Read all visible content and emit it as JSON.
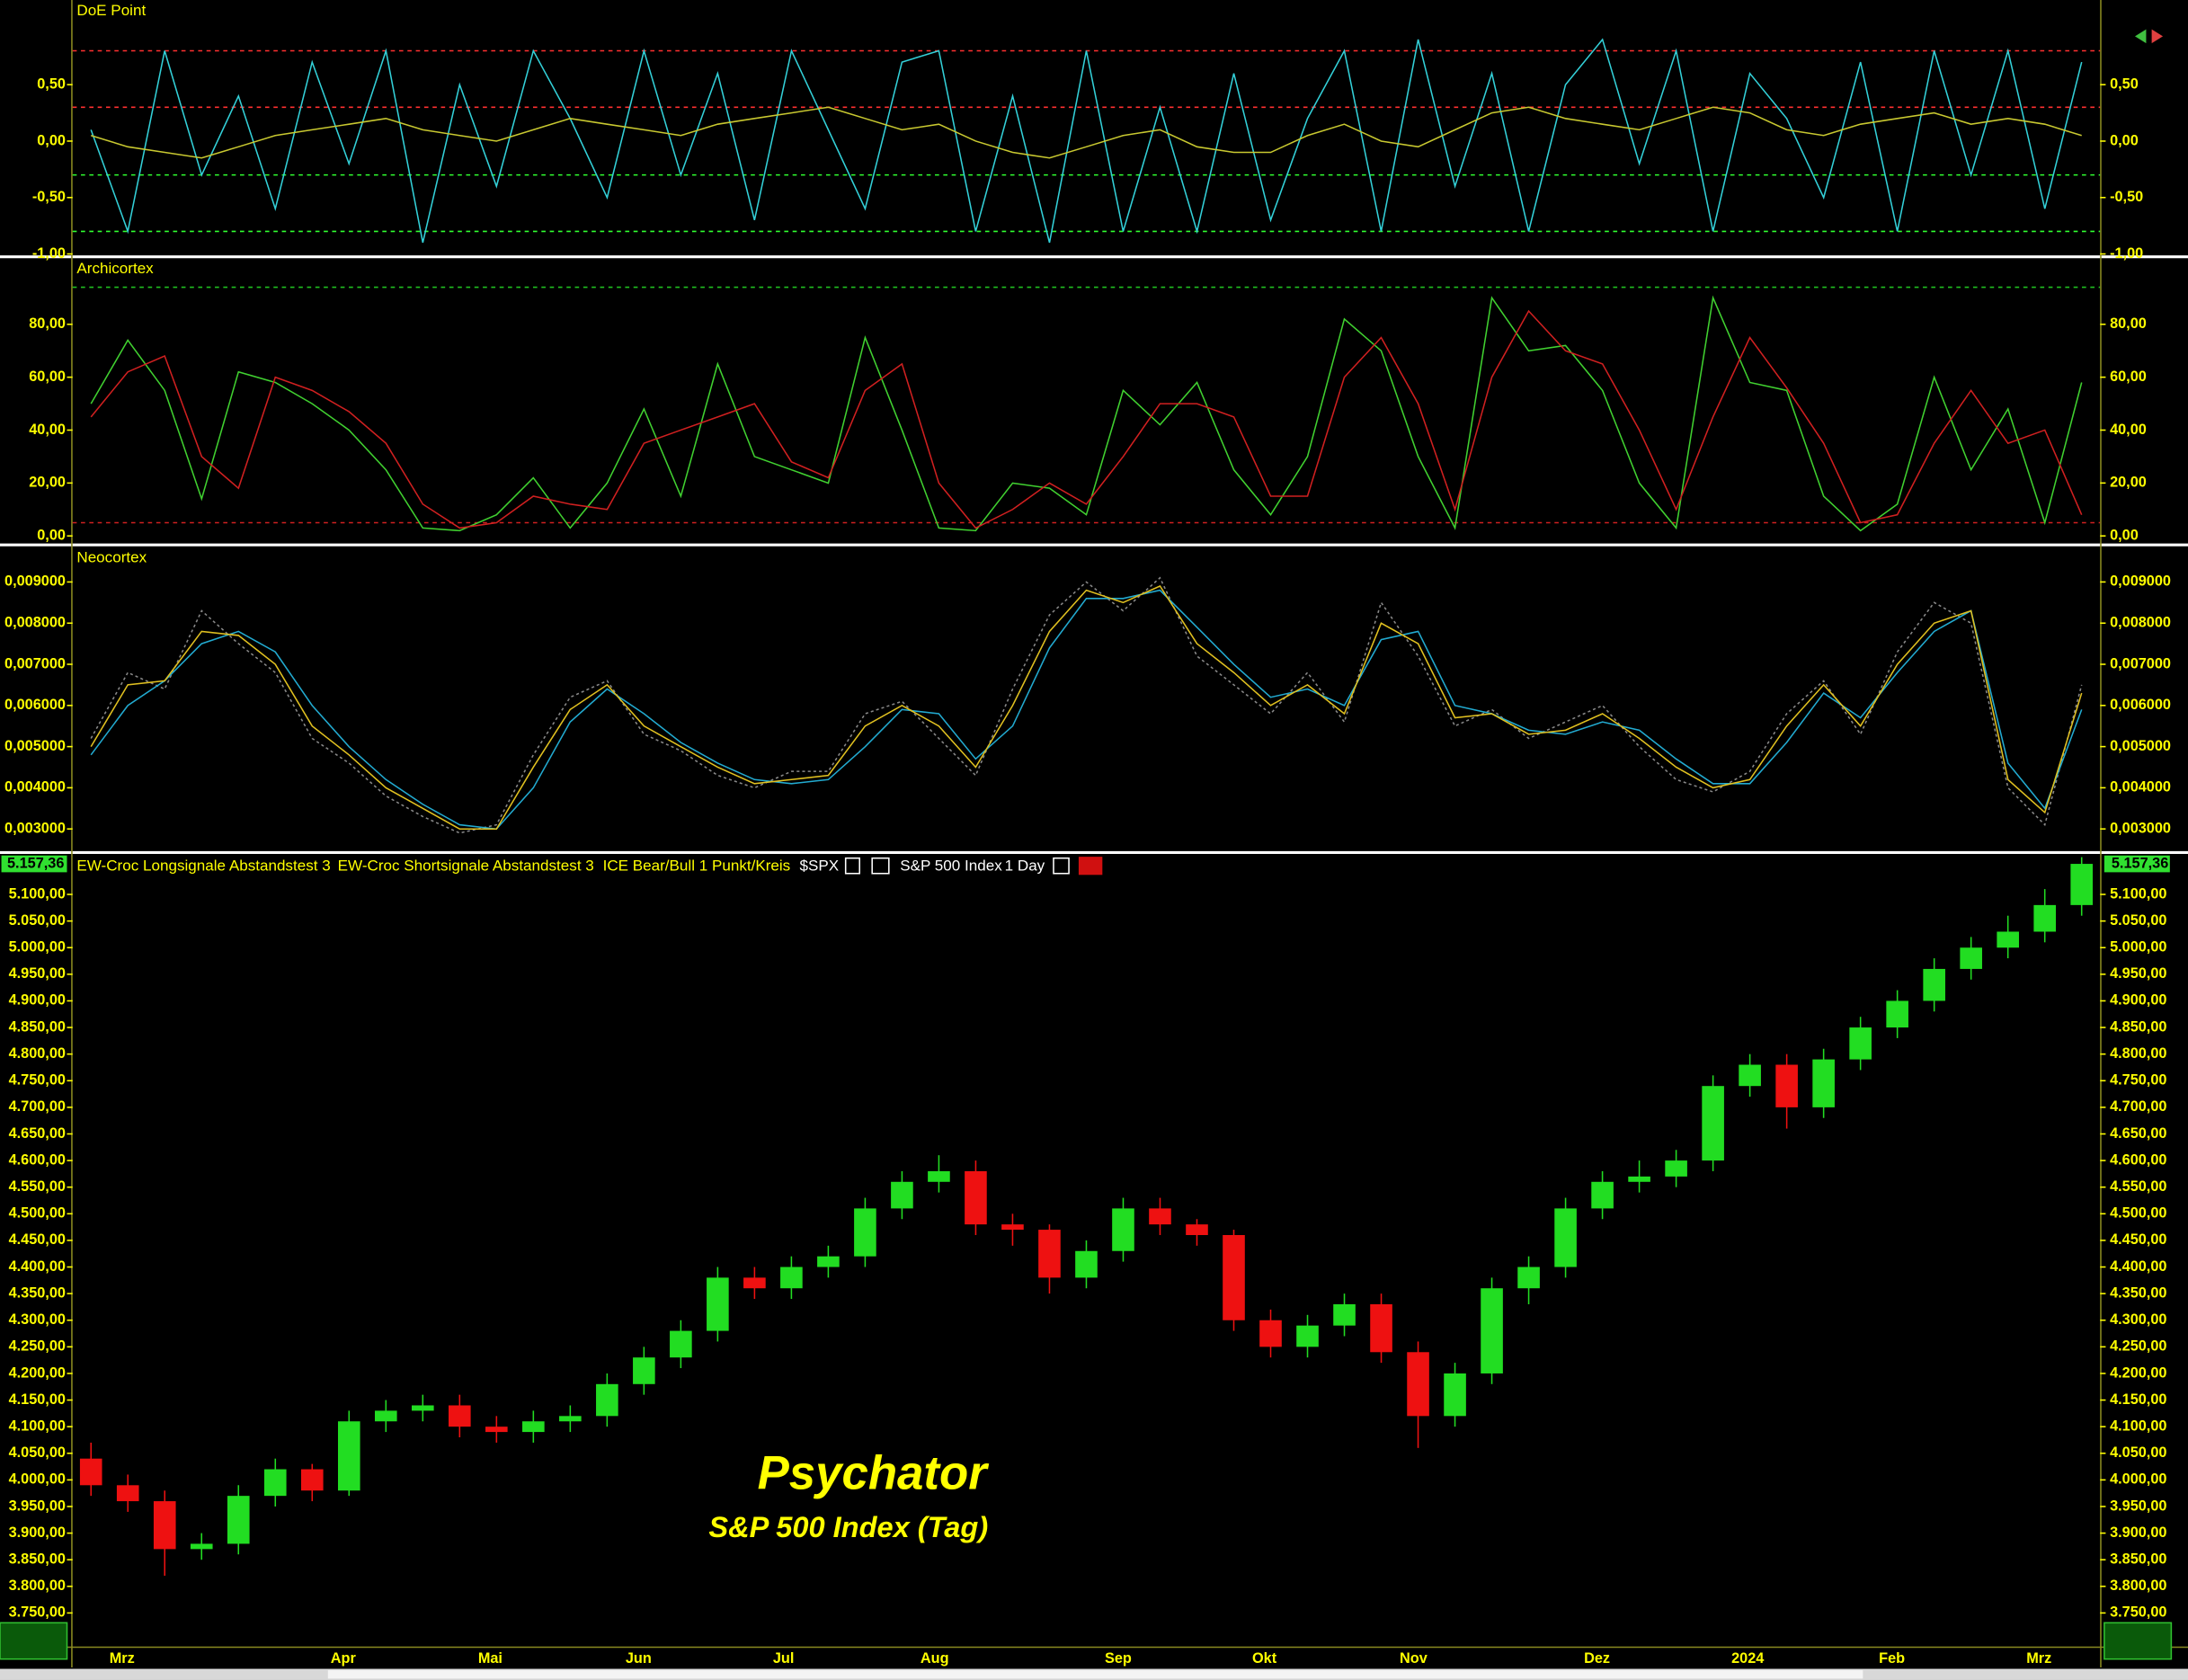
{
  "chart_data": [
    {
      "type": "line",
      "title": "DoE Point",
      "ylim": [
        -1.0,
        1.25
      ],
      "yticks": [
        {
          "value": 0.5,
          "label": "0,50"
        },
        {
          "value": 0,
          "label": "0,00"
        },
        {
          "value": -0.5,
          "label": "-0,50"
        },
        {
          "value": -1,
          "label": "-1,00"
        }
      ],
      "hlines": [
        {
          "value": 0.8,
          "color": "#ff3030"
        },
        {
          "value": 0.3,
          "color": "#ff3030"
        },
        {
          "value": -0.3,
          "color": "#30ff30"
        },
        {
          "value": -0.8,
          "color": "#30ff30"
        }
      ],
      "series": [
        {
          "color": "#33d0d8",
          "values": [
            0.1,
            -0.8,
            0.8,
            -0.3,
            0.4,
            -0.6,
            0.7,
            -0.2,
            0.8,
            -0.9,
            0.5,
            -0.4,
            0.8,
            0.2,
            -0.5,
            0.8,
            -0.3,
            0.6,
            -0.7,
            0.8,
            0.1,
            -0.6,
            0.7,
            0.8,
            -0.8,
            0.4,
            -0.9,
            0.8,
            -0.8,
            0.3,
            -0.8,
            0.6,
            -0.7,
            0.2,
            0.8,
            -0.8,
            0.9,
            -0.4,
            0.6,
            -0.8,
            0.5,
            0.9,
            -0.2,
            0.8,
            -0.8,
            0.6,
            0.2,
            -0.5,
            0.7,
            -0.8,
            0.8,
            -0.3,
            0.8,
            -0.6,
            0.7
          ]
        },
        {
          "color": "#c8c830",
          "values": [
            0.05,
            -0.05,
            -0.1,
            -0.15,
            -0.05,
            0.05,
            0.1,
            0.15,
            0.2,
            0.1,
            0.05,
            0.0,
            0.1,
            0.2,
            0.15,
            0.1,
            0.05,
            0.15,
            0.2,
            0.25,
            0.3,
            0.2,
            0.1,
            0.15,
            0.0,
            -0.1,
            -0.15,
            -0.05,
            0.05,
            0.1,
            -0.05,
            -0.1,
            -0.1,
            0.05,
            0.15,
            0.0,
            -0.05,
            0.1,
            0.25,
            0.3,
            0.2,
            0.15,
            0.1,
            0.2,
            0.3,
            0.25,
            0.1,
            0.05,
            0.15,
            0.2,
            0.25,
            0.15,
            0.2,
            0.15,
            0.05
          ]
        }
      ]
    },
    {
      "type": "line",
      "title": "Archicortex",
      "ylim": [
        -2.6,
        105
      ],
      "yticks": [
        {
          "value": 0,
          "label": "0,00"
        },
        {
          "value": 20,
          "label": "20,00"
        },
        {
          "value": 40,
          "label": "40,00"
        },
        {
          "value": 60,
          "label": "60,00"
        },
        {
          "value": 80,
          "label": "80,00"
        }
      ],
      "hlines": [
        {
          "value": 94,
          "color": "#20c020"
        },
        {
          "value": 5,
          "color": "#d02020"
        }
      ],
      "series": [
        {
          "color": "#40d030",
          "values": [
            50,
            74,
            55,
            14,
            62,
            58,
            50,
            40,
            25,
            3,
            2,
            8,
            22,
            3,
            20,
            48,
            15,
            65,
            30,
            25,
            20,
            75,
            40,
            3,
            2,
            20,
            18,
            8,
            55,
            42,
            58,
            25,
            8,
            30,
            82,
            70,
            30,
            3,
            90,
            70,
            72,
            55,
            20,
            3,
            90,
            58,
            55,
            15,
            2,
            12,
            60,
            25,
            48,
            5,
            58
          ]
        },
        {
          "color": "#d02020",
          "values": [
            45,
            62,
            68,
            30,
            18,
            60,
            55,
            47,
            35,
            12,
            3,
            5,
            15,
            12,
            10,
            35,
            40,
            45,
            50,
            28,
            22,
            55,
            65,
            20,
            3,
            10,
            20,
            12,
            30,
            50,
            50,
            45,
            15,
            15,
            60,
            75,
            50,
            10,
            60,
            85,
            70,
            65,
            40,
            10,
            45,
            75,
            56,
            35,
            5,
            8,
            35,
            55,
            35,
            40,
            8
          ]
        }
      ]
    },
    {
      "type": "line",
      "title": "Neocortex",
      "ylim": [
        0.00246,
        0.00985
      ],
      "yticks": [
        {
          "value": 0.003,
          "label": "0,003000"
        },
        {
          "value": 0.004,
          "label": "0,004000"
        },
        {
          "value": 0.005,
          "label": "0,005000"
        },
        {
          "value": 0.006,
          "label": "0,006000"
        },
        {
          "value": 0.007,
          "label": "0,007000"
        },
        {
          "value": 0.008,
          "label": "0,008000"
        },
        {
          "value": 0.009,
          "label": "0,009000"
        }
      ],
      "series": [
        {
          "color": "#888888",
          "dash": true,
          "values": [
            0.0052,
            0.0068,
            0.0064,
            0.0083,
            0.0075,
            0.0068,
            0.0052,
            0.0046,
            0.0038,
            0.0033,
            0.0029,
            0.0031,
            0.0048,
            0.0062,
            0.0066,
            0.0053,
            0.0049,
            0.0043,
            0.004,
            0.0044,
            0.0044,
            0.0058,
            0.0061,
            0.0052,
            0.0043,
            0.0064,
            0.0082,
            0.009,
            0.0083,
            0.0091,
            0.0072,
            0.0065,
            0.0058,
            0.0068,
            0.0056,
            0.0085,
            0.0072,
            0.0055,
            0.0059,
            0.0052,
            0.0056,
            0.006,
            0.005,
            0.0042,
            0.0039,
            0.0044,
            0.0058,
            0.0066,
            0.0053,
            0.0073,
            0.0085,
            0.008,
            0.004,
            0.0031,
            0.0065
          ]
        },
        {
          "color": "#22aad0",
          "values": [
            0.0048,
            0.006,
            0.0066,
            0.0075,
            0.0078,
            0.0073,
            0.006,
            0.005,
            0.0042,
            0.0036,
            0.0031,
            0.003,
            0.004,
            0.0056,
            0.0064,
            0.0058,
            0.0051,
            0.0046,
            0.0042,
            0.0041,
            0.0042,
            0.005,
            0.0059,
            0.0058,
            0.0047,
            0.0055,
            0.0074,
            0.0086,
            0.0086,
            0.0088,
            0.0079,
            0.007,
            0.0062,
            0.0064,
            0.006,
            0.0076,
            0.0078,
            0.006,
            0.0058,
            0.0054,
            0.0053,
            0.0056,
            0.0054,
            0.0047,
            0.0041,
            0.0041,
            0.0051,
            0.0063,
            0.0057,
            0.0068,
            0.0078,
            0.0083,
            0.0046,
            0.0035,
            0.0059
          ]
        },
        {
          "color": "#e0c020",
          "values": [
            0.005,
            0.0065,
            0.0066,
            0.0078,
            0.0077,
            0.007,
            0.0055,
            0.0048,
            0.004,
            0.0035,
            0.003,
            0.003,
            0.0045,
            0.0059,
            0.0065,
            0.0055,
            0.005,
            0.0045,
            0.0041,
            0.0042,
            0.0043,
            0.0055,
            0.006,
            0.0055,
            0.0045,
            0.006,
            0.0078,
            0.0088,
            0.0085,
            0.0089,
            0.0075,
            0.0068,
            0.006,
            0.0065,
            0.0058,
            0.008,
            0.0075,
            0.0057,
            0.0058,
            0.0053,
            0.0054,
            0.0058,
            0.0052,
            0.0045,
            0.004,
            0.0042,
            0.0055,
            0.0065,
            0.0055,
            0.007,
            0.008,
            0.0083,
            0.0042,
            0.0034,
            0.0063
          ]
        }
      ]
    },
    {
      "type": "candlestick",
      "indicators": [
        "EW-Croc Longsignale Abstandstest 3",
        "EW-Croc Shortsignale Abstandstest 3",
        "ICE Bear/Bull 1 Punkt/Kreis"
      ],
      "symbol": "$SPX",
      "name": "S&P 500 Index",
      "interval": "1 Day",
      "watermark_title": "Psychator",
      "watermark_subtitle": "S&P 500 Index (Tag)",
      "up_color": "#22dd22",
      "down_color": "#ee1111",
      "last_price": 5157.36,
      "last_price_label": "5.157,36",
      "ylim": [
        3687,
        5176
      ],
      "yticks": [
        {
          "value": 3750,
          "label": "3.750,00"
        },
        {
          "value": 3800,
          "label": "3.800,00"
        },
        {
          "value": 3850,
          "label": "3.850,00"
        },
        {
          "value": 3900,
          "label": "3.900,00"
        },
        {
          "value": 3950,
          "label": "3.950,00"
        },
        {
          "value": 4000,
          "label": "4.000,00"
        },
        {
          "value": 4050,
          "label": "4.050,00"
        },
        {
          "value": 4100,
          "label": "4.100,00"
        },
        {
          "value": 4150,
          "label": "4.150,00"
        },
        {
          "value": 4200,
          "label": "4.200,00"
        },
        {
          "value": 4250,
          "label": "4.250,00"
        },
        {
          "value": 4300,
          "label": "4.300,00"
        },
        {
          "value": 4350,
          "label": "4.350,00"
        },
        {
          "value": 4400,
          "label": "4.400,00"
        },
        {
          "value": 4450,
          "label": "4.450,00"
        },
        {
          "value": 4500,
          "label": "4.500,00"
        },
        {
          "value": 4550,
          "label": "4.550,00"
        },
        {
          "value": 4600,
          "label": "4.600,00"
        },
        {
          "value": 4650,
          "label": "4.650,00"
        },
        {
          "value": 4700,
          "label": "4.700,00"
        },
        {
          "value": 4750,
          "label": "4.750,00"
        },
        {
          "value": 4800,
          "label": "4.800,00"
        },
        {
          "value": 4850,
          "label": "4.850,00"
        },
        {
          "value": 4900,
          "label": "4.900,00"
        },
        {
          "value": 4950,
          "label": "4.950,00"
        },
        {
          "value": 5000,
          "label": "5.000,00"
        },
        {
          "value": 5050,
          "label": "5.050,00"
        },
        {
          "value": 5100,
          "label": "5.100,00"
        }
      ],
      "categories": [
        null,
        "Mrz",
        null,
        null,
        null,
        null,
        null,
        "Apr",
        null,
        null,
        null,
        "Mai",
        null,
        null,
        null,
        "Jun",
        null,
        null,
        null,
        "Jul",
        null,
        null,
        null,
        "Aug",
        null,
        null,
        null,
        null,
        "Sep",
        null,
        null,
        null,
        "Okt",
        null,
        null,
        null,
        "Nov",
        null,
        null,
        null,
        null,
        "Dez",
        null,
        null,
        null,
        "2024",
        null,
        null,
        null,
        "Feb",
        null,
        null,
        null,
        "Mrz",
        null
      ],
      "open": [
        4040,
        3990,
        3960,
        3870,
        3880,
        3970,
        4020,
        3980,
        4110,
        4130,
        4140,
        4100,
        4090,
        4110,
        4120,
        4180,
        4230,
        4280,
        4380,
        4360,
        4400,
        4420,
        4510,
        4560,
        4580,
        4480,
        4470,
        4380,
        4430,
        4510,
        4480,
        4460,
        4300,
        4250,
        4290,
        4330,
        4240,
        4120,
        4200,
        4360,
        4400,
        4510,
        4560,
        4570,
        4600,
        4740,
        4780,
        4700,
        4790,
        4850,
        4900,
        4960,
        5000,
        5030,
        5080
      ],
      "high": [
        4070,
        4010,
        3980,
        3900,
        3990,
        4040,
        4030,
        4130,
        4150,
        4160,
        4160,
        4120,
        4130,
        4140,
        4200,
        4250,
        4300,
        4400,
        4400,
        4420,
        4440,
        4530,
        4580,
        4610,
        4600,
        4500,
        4480,
        4450,
        4530,
        4530,
        4490,
        4470,
        4320,
        4310,
        4350,
        4350,
        4260,
        4220,
        4380,
        4420,
        4530,
        4580,
        4600,
        4620,
        4760,
        4800,
        4800,
        4810,
        4870,
        4920,
        4980,
        5020,
        5060,
        5110,
        5170
      ],
      "low": [
        3970,
        3940,
        3820,
        3850,
        3860,
        3950,
        3960,
        3970,
        4090,
        4110,
        4080,
        4070,
        4070,
        4090,
        4100,
        4160,
        4210,
        4260,
        4340,
        4340,
        4380,
        4400,
        4490,
        4540,
        4460,
        4440,
        4350,
        4360,
        4410,
        4460,
        4440,
        4280,
        4230,
        4230,
        4270,
        4220,
        4060,
        4100,
        4180,
        4330,
        4380,
        4490,
        4540,
        4550,
        4580,
        4720,
        4660,
        4680,
        4770,
        4830,
        4880,
        4940,
        4980,
        5010,
        5060
      ],
      "close": [
        3990,
        3960,
        3870,
        3880,
        3970,
        4020,
        3980,
        4110,
        4130,
        4140,
        4100,
        4090,
        4110,
        4120,
        4180,
        4230,
        4280,
        4380,
        4360,
        4400,
        4420,
        4510,
        4560,
        4580,
        4480,
        4470,
        4380,
        4430,
        4510,
        4480,
        4460,
        4300,
        4250,
        4290,
        4330,
        4240,
        4120,
        4200,
        4360,
        4400,
        4510,
        4560,
        4570,
        4600,
        4740,
        4780,
        4700,
        4790,
        4850,
        4900,
        4960,
        5000,
        5030,
        5080,
        5157.36
      ]
    }
  ]
}
